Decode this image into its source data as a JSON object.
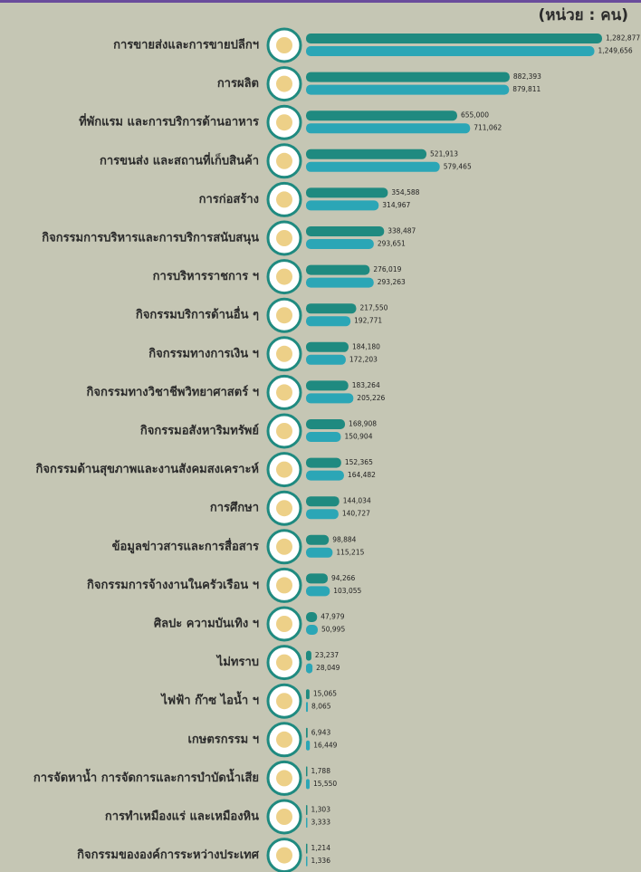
{
  "chart_data": {
    "type": "bar",
    "orientation": "horizontal",
    "unit_label": "(หน่วย : คน)",
    "categories": [
      "การขายส่งและการขายปลีกฯ",
      "การผลิต",
      "ที่พักแรม และการบริการด้านอาหาร",
      "การขนส่ง และสถานที่เก็บสินค้า",
      "การก่อสร้าง",
      "กิจกรรมการบริหารและการบริการสนับสนุน",
      "การบริหารราชการ ฯ",
      "กิจกรรมบริการด้านอื่น ๆ",
      "กิจกรรมทางการเงิน ฯ",
      "กิจกรรมทางวิชาชีพวิทยาศาสตร์ ฯ",
      "กิจกรรมอสังหาริมทรัพย์",
      "กิจกรรมด้านสุขภาพและงานสังคมสงเคราะห์",
      "การศึกษา",
      "ข้อมูลข่าวสารและการสื่อสาร",
      "กิจกรรมการจ้างงานในครัวเรือน ฯ",
      "ศิลปะ ความบันเทิง ฯ",
      "ไม่ทราบ",
      "ไฟฟ้า ก๊าซ ไอน้ำ ฯ",
      "เกษตรกรรม ฯ",
      "การจัดหาน้ำ การจัดการและการบำบัดน้ำเสีย",
      "การทำเหมืองแร่ และเหมืองหิน",
      "กิจกรรมขององค์การระหว่างประเทศ"
    ],
    "series": [
      {
        "color": "#1f8a80",
        "values": [
          1282877,
          882393,
          655000,
          521913,
          354588,
          338487,
          276019,
          217550,
          184180,
          183264,
          168908,
          152365,
          144034,
          98884,
          94266,
          47979,
          23237,
          15065,
          6943,
          1788,
          1303,
          1214
        ],
        "value_labels": [
          "1,282,877",
          "882,393",
          "655,000",
          "521,913",
          "354,588",
          "338,487",
          "276,019",
          "217,550",
          "184,180",
          "183,264",
          "168,908",
          "152,365",
          "144,034",
          "98,884",
          "94,266",
          "47,979",
          "23,237",
          "15,065",
          "6,943",
          "1,788",
          "1,303",
          "1,214"
        ]
      },
      {
        "color": "#2ba6b6",
        "values": [
          1249656,
          879811,
          711062,
          579465,
          314967,
          293651,
          293263,
          192771,
          172203,
          205226,
          150904,
          164482,
          140727,
          115215,
          103055,
          50995,
          28049,
          8065,
          16449,
          15550,
          3333,
          1336
        ],
        "value_labels": [
          "1,249,656",
          "879,811",
          "711,062",
          "579,465",
          "314,967",
          "293,651",
          "293,263",
          "192,771",
          "172,203",
          "205,226",
          "150,904",
          "164,482",
          "140,727",
          "115,215",
          "103,055",
          "50,995",
          "28,049",
          "8,065",
          "16,449",
          "15,550",
          "3,333",
          "1,336"
        ]
      }
    ]
  }
}
